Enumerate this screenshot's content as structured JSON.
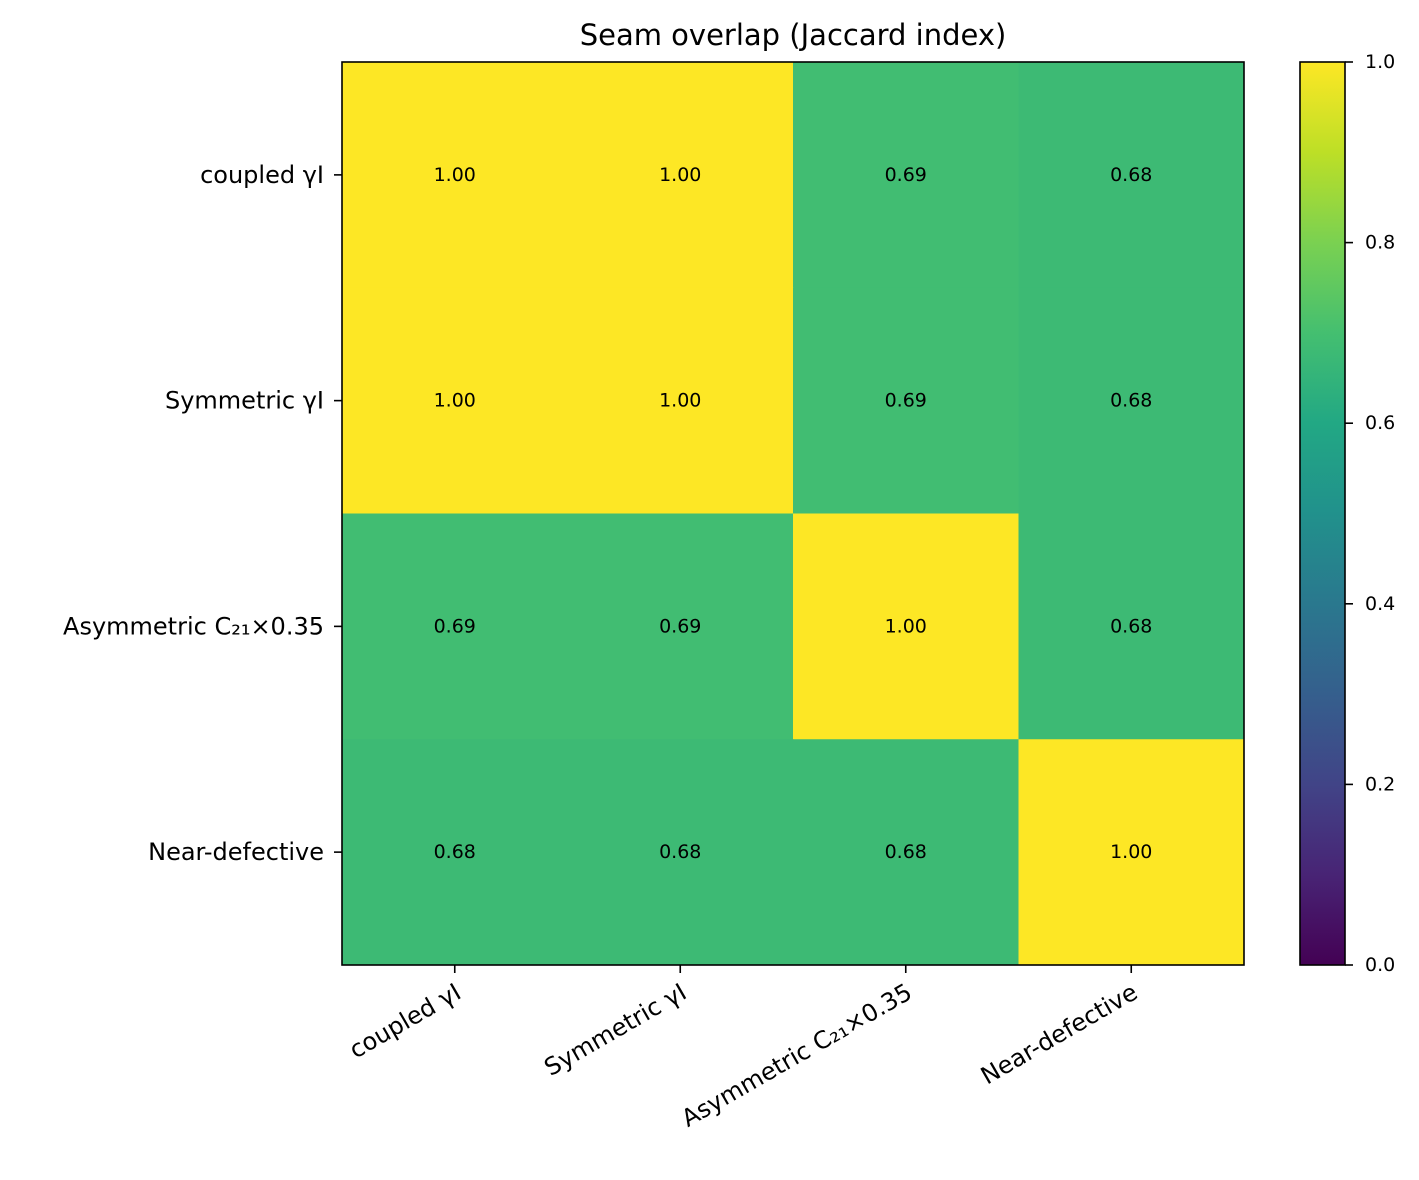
{
  "chart_data": {
    "type": "heatmap",
    "title": "Seam overlap (Jaccard index)",
    "xlabel": "",
    "ylabel": "",
    "row_labels": [
      "coupled γI",
      "Symmetric γI",
      "Asymmetric C₂₁×0.35",
      "Near-defective"
    ],
    "col_labels": [
      "coupled γI",
      "Symmetric γI",
      "Asymmetric C₂₁×0.35",
      "Near-defective"
    ],
    "values": [
      [
        1.0,
        1.0,
        0.69,
        0.68
      ],
      [
        1.0,
        1.0,
        0.69,
        0.68
      ],
      [
        0.69,
        0.69,
        1.0,
        0.68
      ],
      [
        0.68,
        0.68,
        0.68,
        1.0
      ]
    ],
    "value_format_decimals": 2,
    "colormap": "viridis",
    "vmin": 0.0,
    "vmax": 1.0,
    "colorbar_ticks": [
      "0.0",
      "0.2",
      "0.4",
      "0.6",
      "0.8",
      "1.0"
    ],
    "x_tick_rotation_deg": 30,
    "grid": false
  }
}
